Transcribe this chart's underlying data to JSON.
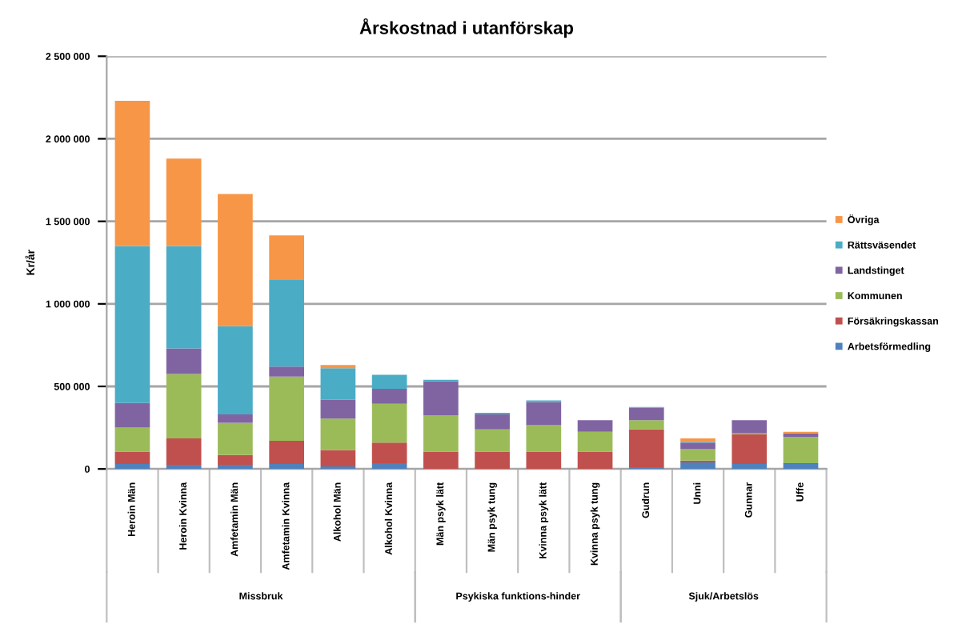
{
  "chart_data": {
    "type": "bar",
    "title": "Årskostnad i utanförskap",
    "ylabel": "Kr/år",
    "stacked": true,
    "grid": "y",
    "legend": "right",
    "categories": [
      "Heroin Män",
      "Heroin Kvinna",
      "Amfetamin Män",
      "Amfetamin Kvinna",
      "Alkohol Män",
      "Alkohol Kvinna",
      "Män psyk lätt",
      "Män psyk tung",
      "Kvinna psyk lätt",
      "Kvinna psyk tung",
      "Gudrun",
      "Unni",
      "Gunnar",
      "Uffe"
    ],
    "annotations": [
      "Missbruk",
      "Psykiska funktions-hinder",
      "Sjuk/Arbetslös"
    ],
    "ylim": [
      0,
      2500000
    ],
    "yticks": [
      0,
      {
        "value": 500000,
        "label": "500 000"
      },
      {
        "value": 1000000,
        "label": "1 000 000"
      },
      {
        "value": 1500000,
        "label": "1 500 000"
      },
      {
        "value": 2000000,
        "label": "2 000 000"
      },
      {
        "value": 2500000,
        "label": "2 500 000"
      }
    ],
    "series": [
      {
        "name": "Arbetsförmedling",
        "color": "#4f81bd",
        "values": [
          30000,
          25000,
          25000,
          30000,
          15000,
          35000,
          0,
          0,
          0,
          0,
          10000,
          40000,
          30000,
          30000
        ]
      },
      {
        "name": "Försäkringskassan",
        "color": "#c0504d",
        "values": [
          75000,
          160000,
          60000,
          140000,
          100000,
          125000,
          105000,
          105000,
          105000,
          105000,
          230000,
          10000,
          180000,
          5000
        ]
      },
      {
        "name": "Kommunen",
        "color": "#9bbb59",
        "values": [
          145000,
          390000,
          195000,
          390000,
          190000,
          235000,
          220000,
          135000,
          160000,
          120000,
          55000,
          70000,
          5000,
          160000
        ]
      },
      {
        "name": "Landstinget",
        "color": "#8064a2",
        "values": [
          150000,
          155000,
          50000,
          60000,
          115000,
          90000,
          205000,
          90000,
          140000,
          70000,
          75000,
          40000,
          80000,
          20000
        ]
      },
      {
        "name": "Rättsväsendet",
        "color": "#4bacc6",
        "values": [
          950000,
          620000,
          535000,
          525000,
          190000,
          85000,
          10000,
          10000,
          10000,
          0,
          5000,
          5000,
          0,
          0
        ]
      },
      {
        "name": "Övriga",
        "color": "#f79646",
        "values": [
          880000,
          530000,
          800000,
          270000,
          20000,
          0,
          0,
          0,
          0,
          0,
          0,
          20000,
          0,
          10000
        ]
      }
    ]
  }
}
